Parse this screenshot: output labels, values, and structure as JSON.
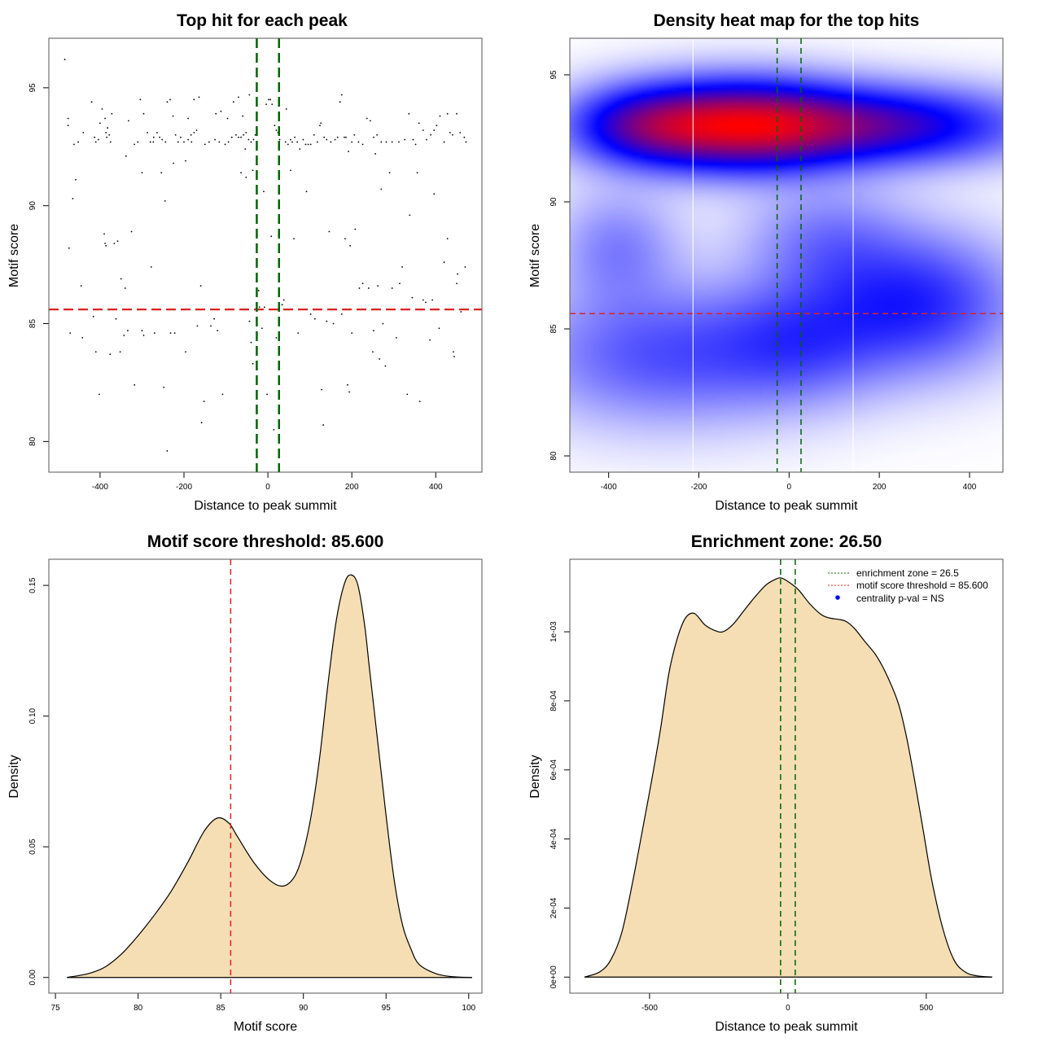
{
  "colors": {
    "threshold_red": "#dd2222",
    "enrichment_green": "#006400",
    "density_fill": "#f5deb3",
    "curve": "#000000",
    "point": "#000000",
    "heat_low": "#ffffff",
    "heat_mid": "#0000ff",
    "heat_high": "#ff0000",
    "legend_dot": "#0000ff"
  },
  "chart_data": [
    {
      "id": "scatter",
      "type": "scatter",
      "title": "Top hit for each peak",
      "xlabel": "Distance to peak summit",
      "ylabel": "Motif score",
      "xlim": [
        -522,
        510
      ],
      "ylim": [
        78.7,
        97.1
      ],
      "xticks": [
        -400,
        -200,
        0,
        200,
        400
      ],
      "yticks": [
        80,
        85,
        90,
        95
      ],
      "hlines": [
        85.6
      ],
      "vlines": [
        -26.5,
        26.5
      ],
      "points": [
        [
          -484,
          96.2
        ],
        [
          -476,
          93.7
        ],
        [
          -476,
          93.4
        ],
        [
          -474,
          88.2
        ],
        [
          -465,
          90.3
        ],
        [
          -462,
          92.6
        ],
        [
          -458,
          91.1
        ],
        [
          -452,
          92.7
        ],
        [
          -445,
          86.6
        ],
        [
          -442,
          84.4
        ],
        [
          -471,
          84.6
        ],
        [
          -440,
          93.1
        ],
        [
          -420,
          94.4
        ],
        [
          -413,
          92.9
        ],
        [
          -410,
          92.7
        ],
        [
          -404,
          92.8
        ],
        [
          -400,
          93.5
        ],
        [
          -395,
          94.1
        ],
        [
          -388,
          93.7
        ],
        [
          -386,
          93.1
        ],
        [
          -384,
          92.9
        ],
        [
          -382,
          93.3
        ],
        [
          -378,
          93.0
        ],
        [
          -375,
          92.7
        ],
        [
          -372,
          93.9
        ],
        [
          -390,
          88.8
        ],
        [
          -388,
          88.4
        ],
        [
          -386,
          88.3
        ],
        [
          -366,
          88.4
        ],
        [
          -358,
          88.5
        ],
        [
          -350,
          86.9
        ],
        [
          -340,
          86.5
        ],
        [
          -338,
          92.1
        ],
        [
          -332,
          93.6
        ],
        [
          -325,
          88.9
        ],
        [
          -318,
          92.6
        ],
        [
          -310,
          92.7
        ],
        [
          -304,
          94.5
        ],
        [
          -296,
          93.9
        ],
        [
          -287,
          93.1
        ],
        [
          -280,
          92.7
        ],
        [
          -272,
          92.9
        ],
        [
          -264,
          93.1
        ],
        [
          -258,
          92.9
        ],
        [
          -252,
          92.8
        ],
        [
          -244,
          92.7
        ],
        [
          -240,
          94.4
        ],
        [
          -233,
          94.5
        ],
        [
          -226,
          93.8
        ],
        [
          -220,
          93.0
        ],
        [
          -214,
          92.7
        ],
        [
          -208,
          92.9
        ],
        [
          -200,
          92.7
        ],
        [
          -196,
          91.9
        ],
        [
          -190,
          92.8
        ],
        [
          -182,
          92.7
        ],
        [
          -176,
          94.5
        ],
        [
          -300,
          91.4
        ],
        [
          -278,
          87.4
        ],
        [
          -273,
          92.7
        ],
        [
          -254,
          91.4
        ],
        [
          -245,
          90.2
        ],
        [
          -225,
          91.8
        ],
        [
          -190,
          93.7
        ],
        [
          -183,
          93.0
        ],
        [
          -176,
          93.1
        ],
        [
          -170,
          93.2
        ],
        [
          -164,
          94.6
        ],
        [
          -416,
          85.3
        ],
        [
          -410,
          83.8
        ],
        [
          -402,
          82.0
        ],
        [
          -376,
          83.7
        ],
        [
          -362,
          85.2
        ],
        [
          -352,
          83.8
        ],
        [
          -343,
          84.5
        ],
        [
          -334,
          84.7
        ],
        [
          -318,
          82.4
        ],
        [
          -300,
          84.7
        ],
        [
          -296,
          84.5
        ],
        [
          -270,
          84.6
        ],
        [
          -248,
          82.3
        ],
        [
          -240,
          79.6
        ],
        [
          -232,
          84.6
        ],
        [
          -222,
          84.6
        ],
        [
          -196,
          83.8
        ],
        [
          -188,
          85.6
        ],
        [
          -168,
          84.9
        ],
        [
          -160,
          86.6
        ],
        [
          -158,
          80.8
        ],
        [
          -152,
          81.7
        ],
        [
          -136,
          84.9
        ],
        [
          -128,
          85.2
        ],
        [
          -120,
          84.7
        ],
        [
          -108,
          82.0
        ],
        [
          -150,
          92.6
        ],
        [
          -140,
          92.7
        ],
        [
          -126,
          92.8
        ],
        [
          -116,
          92.7
        ],
        [
          -102,
          92.6
        ],
        [
          -94,
          92.7
        ],
        [
          -86,
          92.9
        ],
        [
          -76,
          93.0
        ],
        [
          -70,
          92.9
        ],
        [
          -64,
          92.9
        ],
        [
          -58,
          93.0
        ],
        [
          -52,
          93.1
        ],
        [
          -46,
          92.8
        ],
        [
          -40,
          92.7
        ],
        [
          -34,
          92.8
        ],
        [
          -124,
          93.9
        ],
        [
          -112,
          94.0
        ],
        [
          -96,
          93.7
        ],
        [
          -82,
          94.4
        ],
        [
          -70,
          94.6
        ],
        [
          -60,
          93.8
        ],
        [
          -54,
          92.4
        ],
        [
          -52,
          91.2
        ],
        [
          -64,
          91.4
        ],
        [
          -44,
          94.7
        ],
        [
          -36,
          91.5
        ],
        [
          -30,
          93.0
        ],
        [
          -44,
          85.1
        ],
        [
          -40,
          84.2
        ],
        [
          -36,
          83.3
        ],
        [
          -28,
          85.6
        ],
        [
          -22,
          86.4
        ],
        [
          -20,
          85.7
        ],
        [
          -14,
          84.8
        ],
        [
          -8,
          85.7
        ],
        [
          -4,
          94.3
        ],
        [
          2,
          94.5
        ],
        [
          6,
          94.5
        ],
        [
          10,
          94.3
        ],
        [
          16,
          93.4
        ],
        [
          20,
          93.2
        ],
        [
          24,
          93.1
        ],
        [
          28,
          92.8
        ],
        [
          -10,
          90.6
        ],
        [
          -2,
          82.0
        ],
        [
          8,
          88.7
        ],
        [
          14,
          80.5
        ],
        [
          20,
          84.4
        ],
        [
          26,
          83.2
        ],
        [
          34,
          85.8
        ],
        [
          38,
          86.0
        ],
        [
          42,
          92.7
        ],
        [
          48,
          92.6
        ],
        [
          54,
          92.8
        ],
        [
          58,
          92.7
        ],
        [
          64,
          92.9
        ],
        [
          70,
          92.7
        ],
        [
          76,
          92.4
        ],
        [
          84,
          92.8
        ],
        [
          90,
          92.6
        ],
        [
          96,
          92.6
        ],
        [
          102,
          92.6
        ],
        [
          110,
          93.0
        ],
        [
          118,
          92.7
        ],
        [
          126,
          93.5
        ],
        [
          134,
          92.9
        ],
        [
          140,
          92.8
        ],
        [
          150,
          92.7
        ],
        [
          44,
          94.1
        ],
        [
          54,
          91.5
        ],
        [
          62,
          88.6
        ],
        [
          72,
          84.6
        ],
        [
          80,
          85.6
        ],
        [
          92,
          90.6
        ],
        [
          102,
          85.4
        ],
        [
          112,
          85.2
        ],
        [
          124,
          93.4
        ],
        [
          128,
          82.2
        ],
        [
          132,
          80.7
        ],
        [
          140,
          85.1
        ],
        [
          146,
          88.9
        ],
        [
          156,
          85.0
        ],
        [
          160,
          92.8
        ],
        [
          166,
          92.9
        ],
        [
          172,
          94.4
        ],
        [
          176,
          94.7
        ],
        [
          182,
          92.9
        ],
        [
          186,
          92.9
        ],
        [
          192,
          92.3
        ],
        [
          200,
          92.7
        ],
        [
          206,
          93.0
        ],
        [
          216,
          92.7
        ],
        [
          226,
          92.6
        ],
        [
          236,
          93.7
        ],
        [
          244,
          93.6
        ],
        [
          252,
          92.9
        ],
        [
          260,
          93.0
        ],
        [
          270,
          92.7
        ],
        [
          282,
          92.7
        ],
        [
          296,
          92.7
        ],
        [
          312,
          92.7
        ],
        [
          326,
          92.8
        ],
        [
          336,
          93.9
        ],
        [
          346,
          92.8
        ],
        [
          352,
          92.6
        ],
        [
          360,
          93.5
        ],
        [
          176,
          85.4
        ],
        [
          184,
          88.6
        ],
        [
          190,
          82.4
        ],
        [
          194,
          82.1
        ],
        [
          196,
          88.3
        ],
        [
          200,
          84.6
        ],
        [
          208,
          89.0
        ],
        [
          218,
          86.5
        ],
        [
          226,
          86.7
        ],
        [
          240,
          86.5
        ],
        [
          250,
          83.8
        ],
        [
          262,
          86.6
        ],
        [
          266,
          83.5
        ],
        [
          274,
          85.0
        ],
        [
          280,
          83.2
        ],
        [
          252,
          84.7
        ],
        [
          256,
          92.2
        ],
        [
          270,
          90.7
        ],
        [
          290,
          91.4
        ],
        [
          296,
          86.5
        ],
        [
          306,
          84.4
        ],
        [
          314,
          86.7
        ],
        [
          320,
          87.4
        ],
        [
          332,
          82.0
        ],
        [
          338,
          89.6
        ],
        [
          344,
          86.1
        ],
        [
          356,
          91.4
        ],
        [
          362,
          81.7
        ],
        [
          370,
          86.0
        ],
        [
          376,
          85.9
        ],
        [
          386,
          84.3
        ],
        [
          392,
          86.0
        ],
        [
          370,
          93.2
        ],
        [
          378,
          92.8
        ],
        [
          388,
          93.0
        ],
        [
          396,
          93.2
        ],
        [
          402,
          93.4
        ],
        [
          410,
          93.8
        ],
        [
          420,
          92.7
        ],
        [
          428,
          93.9
        ],
        [
          434,
          93.1
        ],
        [
          440,
          93.0
        ],
        [
          450,
          93.9
        ],
        [
          458,
          93.1
        ],
        [
          468,
          92.9
        ],
        [
          472,
          92.7
        ],
        [
          396,
          90.5
        ],
        [
          408,
          84.8
        ],
        [
          420,
          87.6
        ],
        [
          428,
          88.6
        ],
        [
          442,
          83.8
        ],
        [
          444,
          83.6
        ],
        [
          450,
          86.7
        ],
        [
          452,
          87.1
        ],
        [
          460,
          85.5
        ],
        [
          470,
          87.4
        ]
      ]
    },
    {
      "id": "heatmap",
      "type": "heatmap",
      "title": "Density heat map for the top hits",
      "xlabel": "Distance to peak summit",
      "ylabel": "Motif score",
      "xlim": [
        -486,
        474
      ],
      "ylim": [
        79.36,
        96.44
      ],
      "xticks": [
        -400,
        -200,
        0,
        200,
        400
      ],
      "yticks": [
        80,
        85,
        90,
        95
      ],
      "hlines": [
        85.6
      ],
      "vlines_green": [
        -26.5,
        26.5
      ],
      "vlines_white": [
        -213,
        142
      ],
      "colormap": [
        "#ffffff",
        "#0000ff",
        "#ff0000"
      ],
      "density_components": [
        {
          "x": -110,
          "y": 93.0,
          "sx": 170,
          "sy": 1.15,
          "w": 1.0
        },
        {
          "x": 230,
          "y": 93.0,
          "sx": 200,
          "sy": 1.0,
          "w": 0.55
        },
        {
          "x": -330,
          "y": 93.0,
          "sx": 110,
          "sy": 1.0,
          "w": 0.4
        },
        {
          "x": 280,
          "y": 86.0,
          "sx": 150,
          "sy": 1.8,
          "w": 0.38
        },
        {
          "x": -280,
          "y": 84.0,
          "sx": 200,
          "sy": 1.8,
          "w": 0.28
        },
        {
          "x": 20,
          "y": 84.5,
          "sx": 130,
          "sy": 1.6,
          "w": 0.24
        },
        {
          "x": -380,
          "y": 88.2,
          "sx": 90,
          "sy": 1.5,
          "w": 0.18
        },
        {
          "x": 80,
          "y": 88.5,
          "sx": 120,
          "sy": 1.5,
          "w": 0.18
        }
      ]
    },
    {
      "id": "score-density",
      "type": "area",
      "title": "Motif score threshold: 85.600",
      "xlabel": "Motif score",
      "ylabel": "Density",
      "xlim": [
        74.6,
        100.8
      ],
      "ylim": [
        -0.006,
        0.16
      ],
      "xticks": [
        75,
        80,
        85,
        90,
        95,
        100
      ],
      "yticks": [
        0.0,
        0.05,
        0.1,
        0.15
      ],
      "ytick_labels": [
        "0.00",
        "0.05",
        "0.10",
        "0.15"
      ],
      "threshold": 85.6,
      "x": [
        75.7,
        77,
        78,
        79,
        80,
        81,
        82,
        83,
        84,
        84.8,
        85.5,
        86,
        87,
        88,
        88.8,
        89.5,
        90,
        90.5,
        91,
        91.5,
        92,
        92.5,
        92.9,
        93.3,
        93.7,
        94,
        94.5,
        95,
        95.5,
        96,
        96.5,
        97,
        98,
        99,
        100.2
      ],
      "y": [
        0.0,
        0.0015,
        0.004,
        0.009,
        0.016,
        0.024,
        0.033,
        0.044,
        0.056,
        0.061,
        0.059,
        0.054,
        0.044,
        0.037,
        0.035,
        0.039,
        0.048,
        0.063,
        0.085,
        0.113,
        0.137,
        0.151,
        0.154,
        0.15,
        0.135,
        0.118,
        0.09,
        0.062,
        0.037,
        0.02,
        0.011,
        0.005,
        0.0015,
        0.0003,
        0.0
      ]
    },
    {
      "id": "distance-density",
      "type": "area",
      "title": "Enrichment zone: 26.50",
      "xlabel": "Distance to peak summit",
      "ylabel": "Density",
      "xlim": [
        -788,
        777
      ],
      "ylim": [
        -4.65e-05,
        0.00121
      ],
      "xticks": [
        -500,
        0,
        500
      ],
      "yticks": [
        0,
        0.0002,
        0.0004,
        0.0006,
        0.0008,
        0.001
      ],
      "ytick_labels": [
        "0e+00",
        "2e-04",
        "4e-04",
        "6e-04",
        "8e-04",
        "1e-03"
      ],
      "enrichment_zone": 26.5,
      "x": [
        -735,
        -680,
        -640,
        -600,
        -560,
        -520,
        -490,
        -460,
        -430,
        -400,
        -370,
        -338,
        -300,
        -265,
        -235,
        -200,
        -160,
        -120,
        -80,
        -50,
        -24,
        10,
        40,
        80,
        120,
        150,
        182,
        210,
        240,
        280,
        320,
        360,
        400,
        430,
        460,
        490,
        520,
        560,
        600,
        640,
        680,
        738
      ],
      "y": [
        0.0,
        1.5e-05,
        5e-05,
        0.00013,
        0.00028,
        0.00045,
        0.00058,
        0.00072,
        0.00088,
        0.00098,
        0.00104,
        0.001053,
        0.00102,
        0.001004,
        0.001,
        0.00102,
        0.00106,
        0.0011,
        0.001135,
        0.00115,
        0.001156,
        0.00114,
        0.00112,
        0.00108,
        0.00105,
        0.00104,
        0.001036,
        0.00103,
        0.00101,
        0.00097,
        0.00093,
        0.00087,
        0.00079,
        0.00069,
        0.00056,
        0.00042,
        0.00028,
        0.00014,
        5e-05,
        1.5e-05,
        4e-06,
        0.0
      ]
    }
  ],
  "legend": {
    "items": [
      {
        "label": "enrichment zone = 26.5",
        "kind": "dotted-line",
        "color": "#006400"
      },
      {
        "label": "motif score threshold = 85.600",
        "kind": "dotted-line",
        "color": "#dd2222"
      },
      {
        "label": "centrality p-val = NS",
        "kind": "dot",
        "color": "#0000ff"
      }
    ]
  }
}
